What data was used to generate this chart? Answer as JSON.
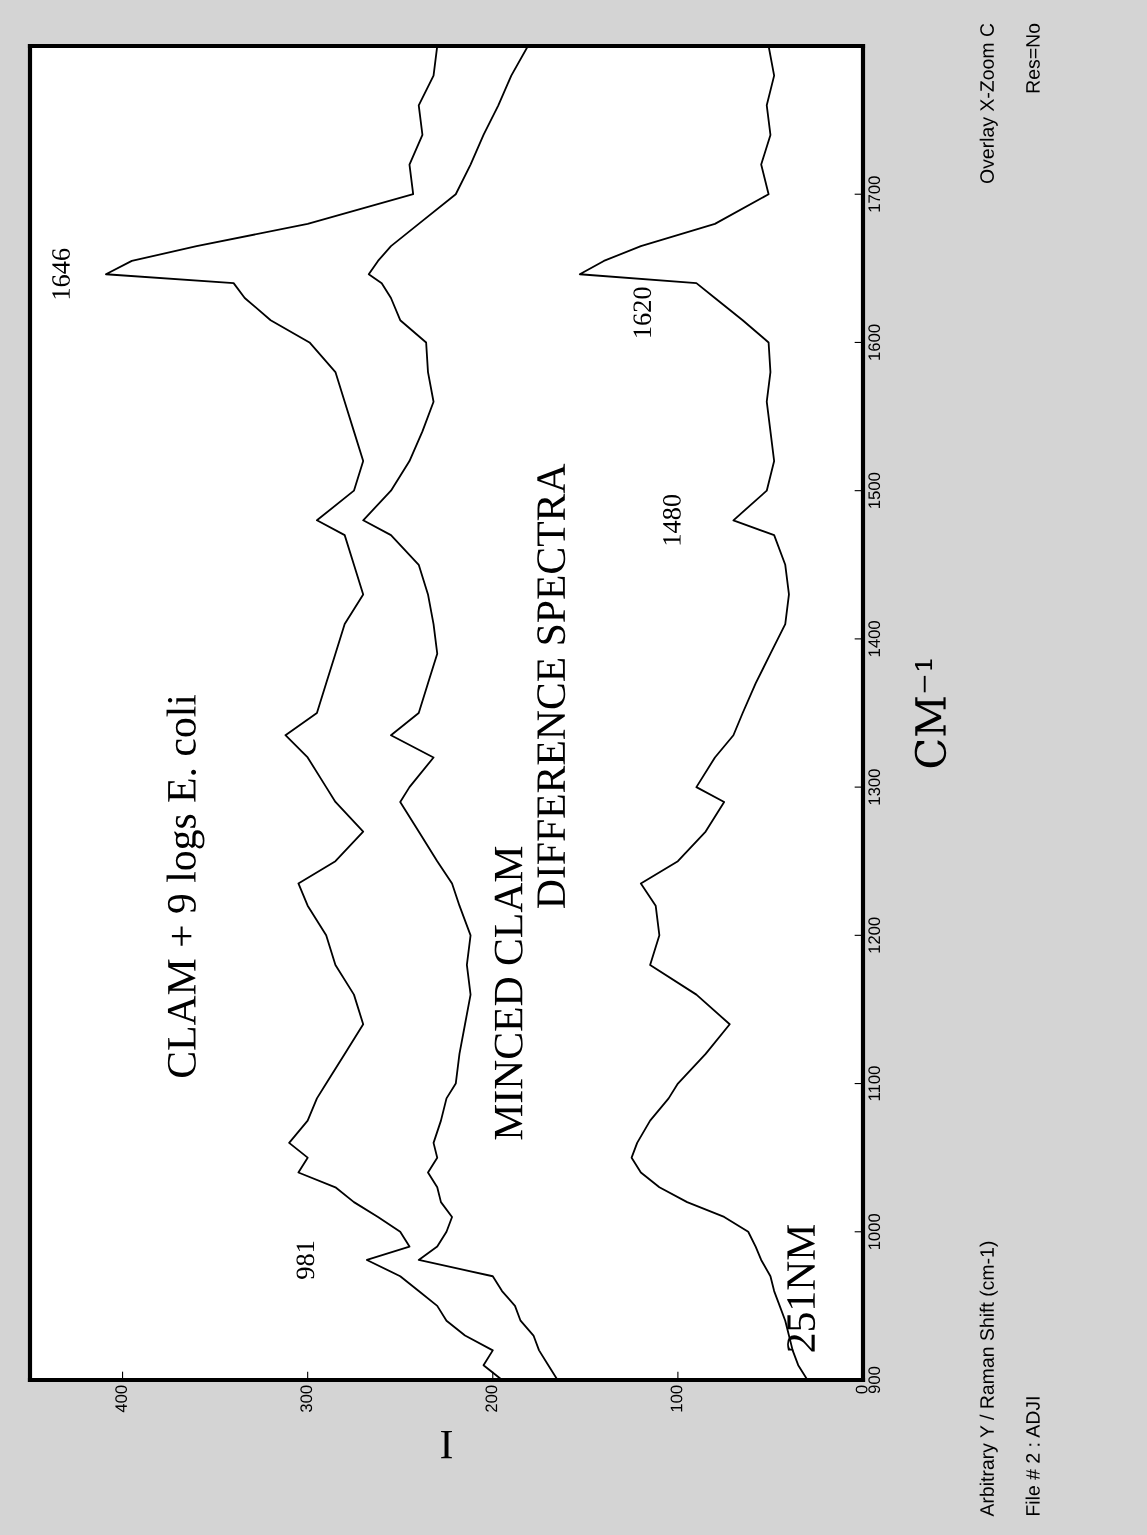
{
  "chart_data": {
    "type": "line",
    "title": "251NM",
    "xlabel": "I",
    "ylabel": "CM⁻¹",
    "xlim": [
      450,
      0
    ],
    "xticks": [
      400,
      300,
      200,
      100,
      0
    ],
    "ylim": [
      900,
      1800
    ],
    "yticks": [
      900,
      1000,
      1100,
      1200,
      1300,
      1400,
      1500,
      1600,
      1700
    ],
    "series": [
      {
        "name": "CLAM + 9 logs E. coli",
        "color": "#000000",
        "x": [
          195,
          205,
          200,
          215,
          225,
          230,
          240,
          250,
          268,
          245,
          250,
          262,
          275,
          285,
          305,
          300,
          310,
          300,
          295,
          290,
          280,
          270,
          275,
          285,
          290,
          300,
          305,
          285,
          270,
          285,
          290,
          300,
          312,
          295,
          290,
          285,
          280,
          270,
          275,
          280,
          295,
          275,
          270,
          275,
          280,
          285,
          299,
          320,
          334,
          340,
          409,
          395,
          360,
          300,
          243,
          245,
          238,
          240,
          232,
          230
        ],
        "values": [
          900,
          910,
          920,
          930,
          940,
          950,
          960,
          970,
          981,
          990,
          1000,
          1010,
          1020,
          1030,
          1040,
          1050,
          1060,
          1075,
          1090,
          1100,
          1120,
          1140,
          1160,
          1180,
          1200,
          1220,
          1235,
          1250,
          1270,
          1290,
          1300,
          1320,
          1335,
          1350,
          1370,
          1390,
          1410,
          1430,
          1450,
          1470,
          1480,
          1500,
          1520,
          1540,
          1560,
          1580,
          1600,
          1615,
          1630,
          1640,
          1646,
          1655,
          1665,
          1680,
          1700,
          1720,
          1740,
          1760,
          1780,
          1800
        ]
      },
      {
        "name": "MINCED CLAM",
        "color": "#000000",
        "x": [
          165,
          170,
          175,
          178,
          185,
          188,
          195,
          200,
          240,
          230,
          225,
          222,
          228,
          230,
          235,
          230,
          232,
          228,
          225,
          220,
          218,
          215,
          212,
          214,
          212,
          218,
          222,
          230,
          240,
          250,
          245,
          232,
          255,
          240,
          235,
          230,
          232,
          235,
          240,
          255,
          270,
          255,
          245,
          238,
          232,
          235,
          236,
          250,
          255,
          260,
          267,
          262,
          255,
          240,
          220,
          212,
          205,
          197,
          190,
          181
        ],
        "values": [
          900,
          910,
          920,
          930,
          940,
          950,
          960,
          970,
          981,
          990,
          1000,
          1010,
          1020,
          1030,
          1040,
          1050,
          1060,
          1075,
          1090,
          1100,
          1120,
          1140,
          1160,
          1180,
          1200,
          1220,
          1235,
          1250,
          1270,
          1290,
          1300,
          1320,
          1335,
          1350,
          1370,
          1390,
          1410,
          1430,
          1450,
          1470,
          1480,
          1500,
          1520,
          1540,
          1560,
          1580,
          1600,
          1615,
          1630,
          1640,
          1646,
          1655,
          1665,
          1680,
          1700,
          1720,
          1740,
          1760,
          1780,
          1800
        ]
      },
      {
        "name": "DIFFERENCE SPECTRA",
        "color": "#000000",
        "x": [
          30,
          35,
          38,
          40,
          42,
          45,
          48,
          50,
          55,
          58,
          62,
          75,
          95,
          110,
          120,
          125,
          122,
          115,
          105,
          100,
          85,
          72,
          90,
          115,
          110,
          112,
          120,
          100,
          85,
          75,
          90,
          80,
          70,
          65,
          58,
          50,
          42,
          40,
          42,
          48,
          70,
          52,
          48,
          50,
          52,
          50,
          51,
          65,
          80,
          90,
          153,
          140,
          120,
          80,
          51,
          55,
          50,
          52,
          48,
          51
        ],
        "values": [
          900,
          910,
          920,
          930,
          940,
          950,
          960,
          970,
          981,
          990,
          1000,
          1010,
          1020,
          1030,
          1040,
          1050,
          1060,
          1075,
          1090,
          1100,
          1120,
          1140,
          1160,
          1180,
          1200,
          1220,
          1235,
          1250,
          1270,
          1290,
          1300,
          1320,
          1335,
          1350,
          1370,
          1390,
          1410,
          1430,
          1450,
          1470,
          1480,
          1500,
          1520,
          1540,
          1560,
          1580,
          1600,
          1615,
          1630,
          1640,
          1646,
          1655,
          1665,
          1680,
          1700,
          1720,
          1740,
          1760,
          1780,
          1800
        ]
      }
    ],
    "annotations": [
      {
        "text": "981",
        "x": 268,
        "y": 981
      },
      {
        "text": "1646",
        "x": 409,
        "y": 1646
      },
      {
        "text": "1620",
        "x": 80,
        "y": 1630
      },
      {
        "text": "1480",
        "x": 70,
        "y": 1480
      },
      "Arbitrary Y / Raman Shift (cm-1)",
      "File # 2 : ADJI",
      "Overlay X-Zoom C",
      "Res=No"
    ],
    "grid": false,
    "legend": false,
    "marker": "none",
    "line_style": "solid"
  }
}
